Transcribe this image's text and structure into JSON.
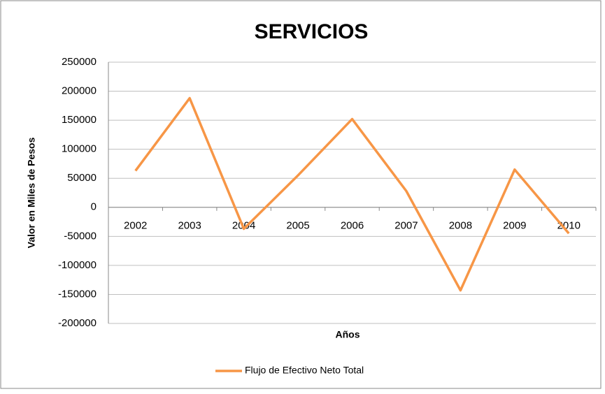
{
  "chart_data": {
    "type": "line",
    "title": "SERVICIOS",
    "x_label": "Años",
    "y_label": "Valor en Miles de Pesos",
    "categories": [
      "2002",
      "2003",
      "2004",
      "2005",
      "2006",
      "2007",
      "2008",
      "2009",
      "2010"
    ],
    "series": [
      {
        "name": "Flujo de Efectivo Neto Total",
        "color": "#f79646",
        "values": [
          63000,
          188000,
          -37000,
          55000,
          152000,
          28000,
          -143000,
          65000,
          -45000
        ]
      }
    ],
    "ylim": [
      -200000,
      250000
    ],
    "yticks": [
      -200000,
      -150000,
      -100000,
      -50000,
      0,
      50000,
      100000,
      150000,
      200000,
      250000
    ],
    "grid": true,
    "legend": "bottom"
  }
}
